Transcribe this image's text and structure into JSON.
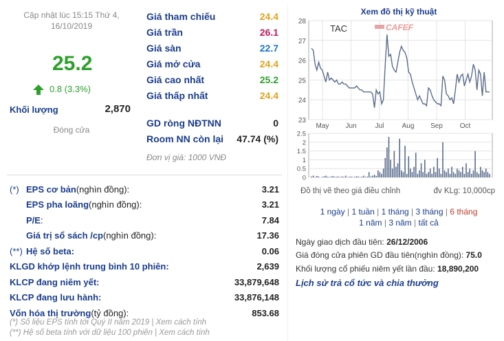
{
  "header": {
    "updated": "Cập nhật lúc 15:15 Thứ 4, 16/10/2019",
    "price": "25.2",
    "change": "0.8 (3.3%)",
    "volume_label": "Khối lượng",
    "volume_value": "2,870",
    "status": "Đóng cửa"
  },
  "colors": {
    "up": "#2ca02c",
    "ref": "#e3a21a",
    "ceiling": "#c2185b",
    "floor": "#1a73c8",
    "label": "#1a3c8c"
  },
  "prices": [
    {
      "label": "Giá tham chiếu",
      "value": "24.4",
      "color": "#e3a21a"
    },
    {
      "label": "Giá trần",
      "value": "26.1",
      "color": "#c2185b"
    },
    {
      "label": "Giá sàn",
      "value": "22.7",
      "color": "#1a73c8"
    },
    {
      "label": "Giá mở cửa",
      "value": "24.4",
      "color": "#e3a21a"
    },
    {
      "label": "Giá cao nhất",
      "value": "25.2",
      "color": "#2ca02c"
    },
    {
      "label": "Giá thấp nhất",
      "value": "24.4",
      "color": "#e3a21a"
    }
  ],
  "foreign": [
    {
      "label": "GD ròng NĐTNN",
      "value": "0"
    },
    {
      "label": "Room NN còn lại",
      "value": "47.74 (%)"
    }
  ],
  "unit_note": "Đơn vị giá: 1000 VNĐ",
  "financials": [
    {
      "mark": "(*)",
      "bold": "EPS cơ bản",
      "normal": " (nghìn đồng):",
      "value": "3.21"
    },
    {
      "mark": "",
      "bold": "EPS pha loãng",
      "normal": " (nghìn đồng):",
      "value": "3.21"
    },
    {
      "mark": "",
      "bold": "P/E",
      "normal": " :",
      "value": "7.84"
    },
    {
      "mark": "",
      "bold": "Giá trị sổ sách /cp",
      "normal": " (nghìn đồng):",
      "value": "17.36"
    },
    {
      "mark": "(**)",
      "bold": "Hệ số beta:",
      "normal": "",
      "value": "0.06"
    },
    {
      "mark": "",
      "bold": "KLGD khớp lệnh trung bình 10 phiên:",
      "normal": "",
      "value": "2,639"
    },
    {
      "mark": "",
      "bold": "KLCP đang niêm yết:",
      "normal": "",
      "value": "33,879,648"
    },
    {
      "mark": "",
      "bold": "KLCP đang lưu hành:",
      "normal": "",
      "value": "33,876,148"
    },
    {
      "mark": "",
      "bold": "Vốn hóa thị trường",
      "normal": " (tỷ đồng):",
      "value": "853.68"
    }
  ],
  "footnotes": [
    "(*) Số liệu EPS tính tới Quý II năm 2019 | Xem cách tính",
    "(**) Hệ số beta tính với dữ liệu 100 phiên | Xem cách tính"
  ],
  "chart": {
    "title": "Xem đồ thị kỹ thuật",
    "ticker": "TAC",
    "brand": "CAFEF",
    "note_left": "Đồ thị vẽ theo giá điều chỉnh",
    "note_right": "đv KLg: 10,000cp"
  },
  "periods": {
    "row1": [
      "1 ngày",
      "1 tuần",
      "1 tháng",
      "3 tháng",
      "6 tháng"
    ],
    "row2": [
      "1 năm",
      "3 năm",
      "tất cả"
    ],
    "active": "6 tháng"
  },
  "info": [
    {
      "label": "Ngày giao dịch đầu tiên: ",
      "value": "26/12/2006"
    },
    {
      "label": "Giá đóng cửa phiên GD đầu tiên(nghìn đồng): ",
      "value": "75.0"
    },
    {
      "label": "Khối lượng cổ phiếu niêm yết lần đầu: ",
      "value": "18,890,200"
    }
  ],
  "history_link": "Lịch sử trả cổ tức và chia thưởng",
  "chart_data": [
    {
      "type": "line",
      "series": [
        {
          "name": "TAC",
          "values": [
            26.6,
            26.5,
            25.8,
            25.5,
            25.9,
            25.6,
            25.5,
            25.2,
            24.9,
            25.4,
            25.0,
            25.1,
            25.0,
            24.9,
            25.0,
            24.8,
            24.8,
            24.9,
            24.8,
            24.8,
            24.7,
            24.6,
            24.6,
            24.6,
            24.6,
            24.7,
            24.6,
            24.5,
            24.5,
            24.4,
            24.4,
            24.4,
            24.4,
            24.4,
            24.3,
            23.6,
            24.5,
            24.3,
            24.4,
            23.8,
            24.0,
            25.8,
            27.3,
            26.2,
            26.3,
            25.7,
            25.5,
            25.4,
            25.9,
            26.4,
            26.7,
            26.5,
            26.4,
            26.1,
            25.4,
            25.3,
            24.9,
            24.6,
            24.3,
            24.0,
            24.2,
            24.0,
            23.8,
            23.8,
            23.7,
            24.6,
            24.5,
            24.2,
            24.0,
            23.9,
            23.8,
            23.8,
            23.7,
            25.2,
            25.0,
            24.3,
            24.2,
            24.0,
            24.1,
            23.8,
            24.5,
            25.3,
            24.9,
            25.2,
            25.3,
            24.7,
            25.0,
            25.3,
            24.9,
            25.2,
            25.8,
            25.5,
            24.5,
            25.5,
            25.3,
            24.2,
            25.4,
            24.4,
            24.4,
            24.4
          ]
        }
      ],
      "x_labels": [
        "May",
        "Jun",
        "Jul",
        "Aug",
        "Sep",
        "Oct"
      ],
      "ylim": [
        23,
        28
      ],
      "yticks": [
        23,
        24,
        25,
        26,
        27,
        28
      ],
      "grid": true
    },
    {
      "type": "bar",
      "series": [
        {
          "name": "volume",
          "values": [
            0.05,
            0.1,
            0.02,
            0.08,
            0.05,
            0,
            0.03,
            0.06,
            0.1,
            0.04,
            0.02,
            0.05,
            0.08,
            0.03,
            0.04,
            0.05,
            0.02,
            0.06,
            0.03,
            0.1,
            0.02,
            0.04,
            0.05,
            0.02,
            0.03,
            0.06,
            0.05,
            0.02,
            0.04,
            0.1,
            0.03,
            0.05,
            0.3,
            0.05,
            0.1,
            0.15,
            0.08,
            0.4,
            0.3,
            0.2,
            0.5,
            1.1,
            1.7,
            2.3,
            1.0,
            0.5,
            1.5,
            0.6,
            0.8,
            2.2,
            0.4,
            0.3,
            1.8,
            0.2,
            1.2,
            0.5,
            0.3,
            0.6,
            1.4,
            0.2,
            0.4,
            0.8,
            0.3,
            1.0,
            0.2,
            0.3,
            0.5,
            0.2,
            0.6,
            0.3,
            1.1,
            0.5,
            0.2,
            2.0,
            0.4,
            0.3,
            0.5,
            0.2,
            0.6,
            0.3,
            0.2,
            0.5,
            0.4,
            0.3,
            0.6,
            0.2,
            0.8,
            0.3,
            0.5,
            0.2,
            0.4,
            1.5,
            0.3,
            0.2,
            0.6,
            0.4,
            0.3,
            0.5,
            0.3,
            0.2
          ]
        }
      ],
      "ylim": [
        0,
        2.5
      ],
      "yticks": [
        0,
        0.5,
        1,
        1.5,
        2,
        2.5
      ],
      "grid": true
    }
  ]
}
